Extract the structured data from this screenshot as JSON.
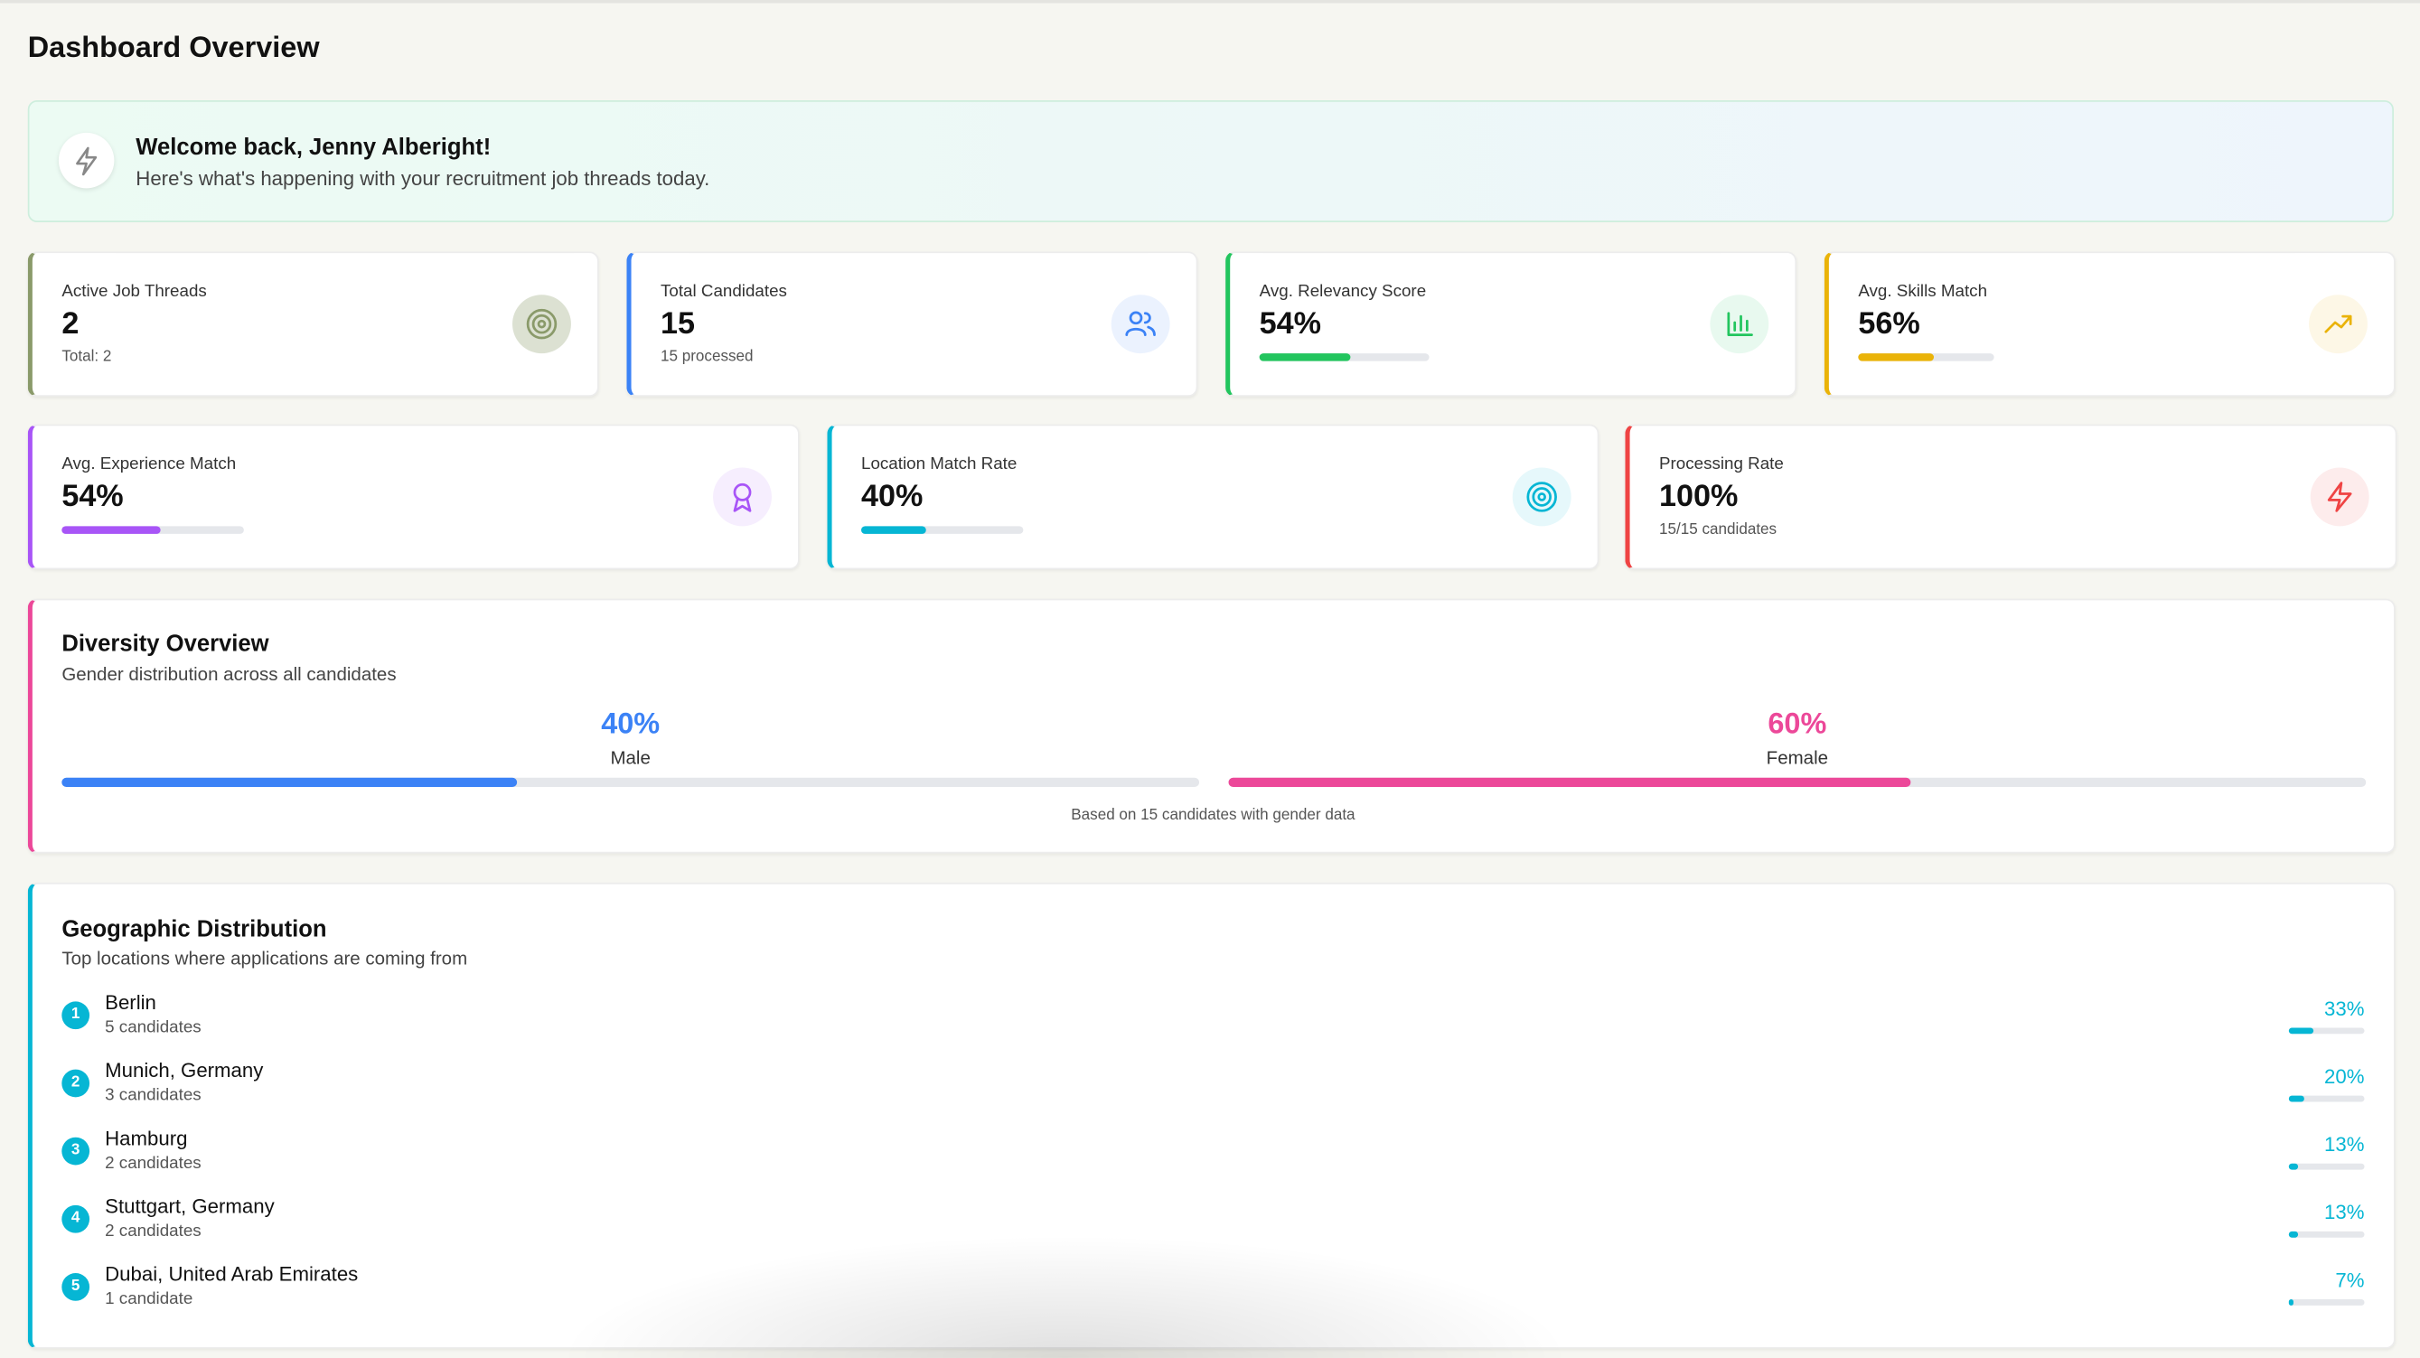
{
  "header": {
    "title": "Dashboard Overview"
  },
  "welcome": {
    "title": "Welcome back, Jenny Alberight!",
    "subtitle": "Here's what's happening with your recruitment job threads today."
  },
  "stats_row1": [
    {
      "label": "Active Job Threads",
      "value_label": "2",
      "sub": "Total: 2",
      "color": "#8a9a6a"
    },
    {
      "label": "Total Candidates",
      "value_label": "15",
      "sub": "15 processed",
      "color": "#3b82f6"
    },
    {
      "label": "Avg. Relevancy Score",
      "value": 54,
      "value_label": "54%",
      "color": "#22c55e"
    },
    {
      "label": "Avg. Skills Match",
      "value": 56,
      "value_label": "56%",
      "color": "#eab308"
    }
  ],
  "stats_row2": [
    {
      "label": "Avg. Experience Match",
      "value": 54,
      "value_label": "54%",
      "color": "#a855f7"
    },
    {
      "label": "Location Match Rate",
      "value": 40,
      "value_label": "40%",
      "color": "#06b6d4"
    },
    {
      "label": "Processing Rate",
      "value_label": "100%",
      "sub": "15/15 candidates",
      "color": "#ef4444"
    }
  ],
  "diversity": {
    "title": "Diversity Overview",
    "subtitle": "Gender distribution across all candidates",
    "groups": [
      {
        "name": "Male",
        "value": 40,
        "value_label": "40%",
        "color": "#3b82f6"
      },
      {
        "name": "Female",
        "value": 60,
        "value_label": "60%",
        "color": "#ec4899"
      }
    ],
    "note": "Based on 15 candidates with gender data"
  },
  "geo": {
    "title": "Geographic Distribution",
    "subtitle": "Top locations where applications are coming from",
    "items": [
      {
        "rank": "1",
        "name": "Berlin",
        "count": "5 candidates",
        "value": 33,
        "value_label": "33%"
      },
      {
        "rank": "2",
        "name": "Munich, Germany",
        "count": "3 candidates",
        "value": 20,
        "value_label": "20%"
      },
      {
        "rank": "3",
        "name": "Hamburg",
        "count": "2 candidates",
        "value": 13,
        "value_label": "13%"
      },
      {
        "rank": "4",
        "name": "Stuttgart, Germany",
        "count": "2 candidates",
        "value": 13,
        "value_label": "13%"
      },
      {
        "rank": "5",
        "name": "Dubai, United Arab Emirates",
        "count": "1 candidate",
        "value": 7,
        "value_label": "7%"
      }
    ]
  }
}
